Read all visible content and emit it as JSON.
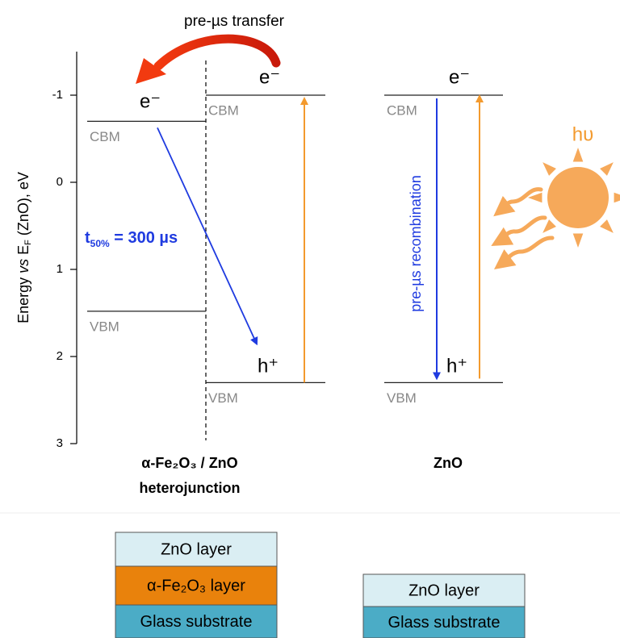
{
  "chart_data": {
    "type": "energy-levels",
    "y_label": [
      "Energy ",
      "vs",
      " E",
      "F",
      " (ZnO), eV"
    ],
    "ylim": [
      -1.5,
      3
    ],
    "y_inverted": true,
    "yticks": [
      -1,
      0,
      1,
      2,
      3
    ],
    "levels": [
      {
        "label": "CBM",
        "value": -0.7
      },
      {
        "label": "VBM",
        "value": 1.48
      },
      {
        "label": "CBM",
        "value": -1
      },
      {
        "label": "VBM",
        "value": 2.3
      },
      {
        "label": "CBM",
        "value": -1
      },
      {
        "label": "VBM",
        "value": 2.3
      }
    ],
    "carriers": [
      "e⁻",
      "e⁻",
      "h⁺",
      "e⁻",
      "h⁺"
    ],
    "annotations": {
      "transfer": "pre-µs transfer",
      "lifetime": [
        "t",
        "50%",
        " = 300 µs"
      ],
      "recombination": "pre-µs recombination",
      "photon": "hυ"
    },
    "x_labels": [
      "α-Fe₂O₃  /  ZnO",
      "heterojunction",
      "ZnO"
    ],
    "stacks": [
      [
        "ZnO layer",
        "α-Fe₂O₃ layer",
        "Glass substrate"
      ],
      [
        "ZnO layer",
        "Glass substrate"
      ]
    ]
  }
}
